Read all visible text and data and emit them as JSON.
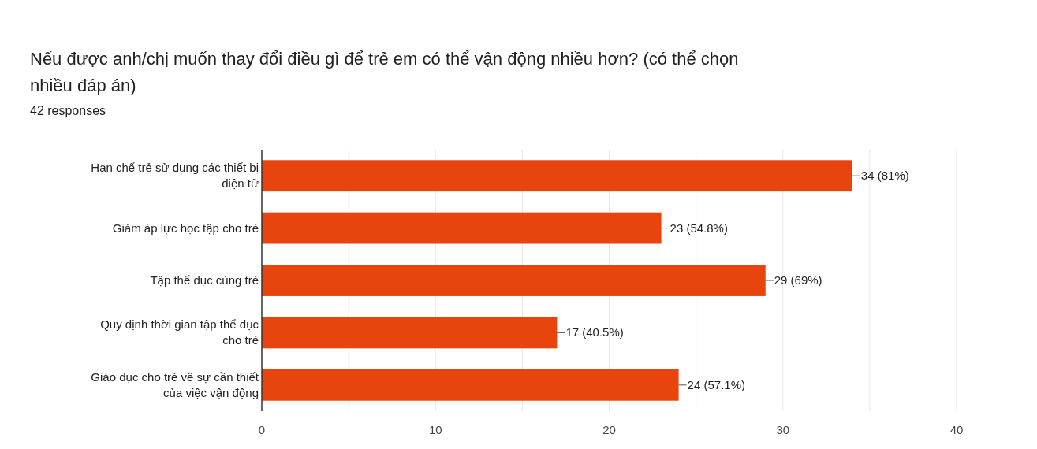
{
  "chart_data": {
    "type": "bar",
    "orientation": "horizontal",
    "title": "Nếu được anh/chị muốn thay đổi điều gì để trẻ em có thể vận động nhiều hơn? (có thể chọn nhiều đáp án)",
    "subtitle": "42 responses",
    "categories": [
      "Hạn chế trẻ sử dụng các thiết bị điện tử",
      "Giảm áp lực học tập cho trẻ",
      "Tập thể dục cùng trẻ",
      "Quy định thời gian tập thể dục cho trẻ",
      "Giáo dục cho trẻ về sự cần thiết của việc vận động"
    ],
    "values": [
      34,
      23,
      29,
      17,
      24
    ],
    "value_labels": [
      "34 (81%)",
      "23 (54.8%)",
      "29 (69%)",
      "17 (40.5%)",
      "24 (57.1%)"
    ],
    "color": "#e8440e",
    "xlim": [
      0,
      40
    ],
    "xticks": [
      0,
      {
        "value": 5,
        "label": null
      },
      10,
      {
        "value": 15,
        "label": null
      },
      20,
      {
        "value": 25,
        "label": null
      },
      30,
      {
        "value": 35,
        "label": null
      },
      40
    ],
    "grid": "x"
  }
}
